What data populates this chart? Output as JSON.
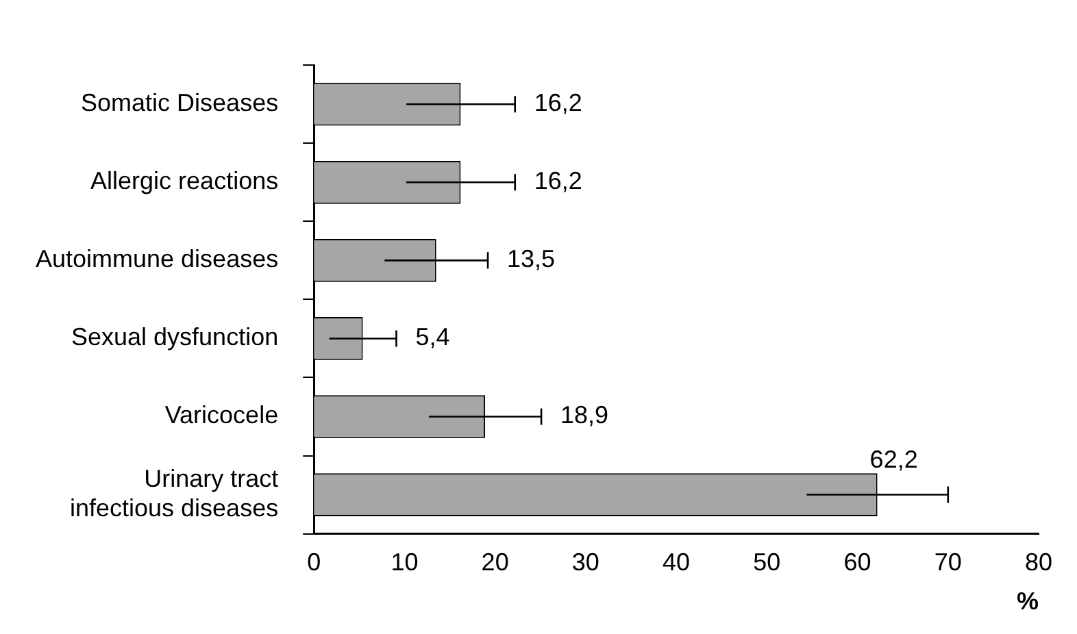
{
  "chart_data": {
    "type": "bar",
    "orientation": "horizontal",
    "xlabel": "%",
    "categories": [
      "Somatic Diseases",
      "Allergic reactions",
      "Autoimmune diseases",
      "Sexual dysfunction",
      "Varicocele",
      "Urinary tract infectious diseases"
    ],
    "values": [
      16.2,
      16.2,
      13.5,
      5.4,
      18.9,
      62.2
    ],
    "errors": [
      6.0,
      6.0,
      5.7,
      3.7,
      6.2,
      7.8
    ],
    "value_labels": [
      "16,2",
      "16,2",
      "13,5",
      "5,4",
      "18,9",
      "62,2"
    ],
    "color": "#a6a6a6",
    "xlim": [
      0,
      80
    ],
    "xticks": [
      0,
      10,
      20,
      30,
      40,
      50,
      60,
      70,
      80
    ],
    "grid": false,
    "legend": false
  }
}
